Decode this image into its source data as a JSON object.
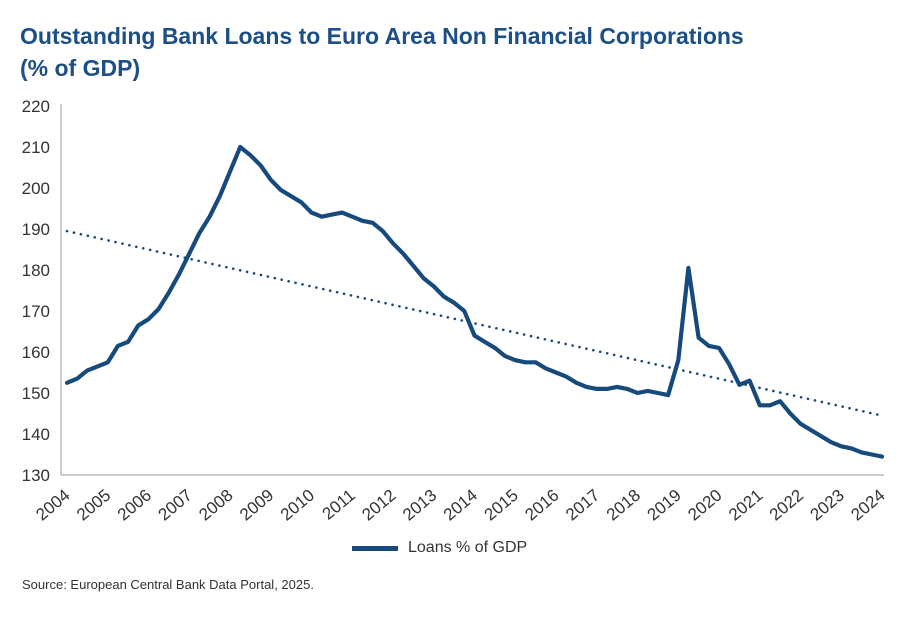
{
  "chart_data": {
    "type": "line",
    "title": "Outstanding Bank Loans to Euro Area Non Financial Corporations",
    "subtitle": "(% of GDP)",
    "source": "Source: European Central Bank Data Portal, 2025.",
    "xlim": [
      2004,
      2024
    ],
    "ylim": [
      130,
      220
    ],
    "x_ticks": [
      "2004",
      "2005",
      "2006",
      "2007",
      "2008",
      "2009",
      "2010",
      "2011",
      "2012",
      "2013",
      "2014",
      "2015",
      "2016",
      "2017",
      "2018",
      "2019",
      "2020",
      "2021",
      "2022",
      "2023",
      "2024"
    ],
    "y_ticks": [
      130,
      140,
      150,
      160,
      170,
      180,
      190,
      200,
      210,
      220
    ],
    "grid": false,
    "legend_position": "bottom-center",
    "colors": {
      "series": "#174a7c",
      "title": "#1b4f86",
      "axis": "#999999"
    },
    "series": [
      {
        "name": "Loans % of GDP",
        "style": "solid",
        "x": [
          2004.0,
          2004.25,
          2004.5,
          2004.75,
          2005.0,
          2005.25,
          2005.5,
          2005.75,
          2006.0,
          2006.25,
          2006.5,
          2006.75,
          2007.0,
          2007.25,
          2007.5,
          2007.75,
          2008.0,
          2008.25,
          2008.5,
          2008.75,
          2009.0,
          2009.25,
          2009.5,
          2009.75,
          2010.0,
          2010.25,
          2010.5,
          2010.75,
          2011.0,
          2011.25,
          2011.5,
          2011.75,
          2012.0,
          2012.25,
          2012.5,
          2012.75,
          2013.0,
          2013.25,
          2013.5,
          2013.75,
          2014.0,
          2014.25,
          2014.5,
          2014.75,
          2015.0,
          2015.25,
          2015.5,
          2015.75,
          2016.0,
          2016.25,
          2016.5,
          2016.75,
          2017.0,
          2017.25,
          2017.5,
          2017.75,
          2018.0,
          2018.25,
          2018.5,
          2018.75,
          2019.0,
          2019.25,
          2019.5,
          2019.75,
          2020.0,
          2020.25,
          2020.5,
          2020.75,
          2021.0,
          2021.25,
          2021.5,
          2021.75,
          2022.0,
          2022.25,
          2022.5,
          2022.75,
          2023.0,
          2023.25,
          2023.5,
          2023.75,
          2024.0
        ],
        "values": [
          152.5,
          153.5,
          155.5,
          156.5,
          157.5,
          161.5,
          162.5,
          166.5,
          168,
          170.5,
          174.5,
          179,
          184,
          189,
          193,
          198,
          204,
          210,
          208,
          205.5,
          202,
          199.5,
          198,
          196.5,
          194,
          193,
          193.5,
          194,
          193,
          192,
          191.5,
          189.5,
          186.5,
          184,
          181,
          178,
          176,
          173.5,
          172,
          170,
          164,
          162.5,
          161,
          159,
          158,
          157.5,
          157.5,
          156,
          155,
          154,
          152.5,
          151.5,
          151,
          151,
          151.5,
          151,
          150,
          150.5,
          150,
          149.5,
          158,
          180.5,
          163.5,
          161.5,
          161,
          157,
          152,
          153,
          147,
          147,
          148,
          145,
          142.5,
          141,
          139.5,
          138,
          137,
          136.5,
          135.5,
          135,
          134.5
        ]
      },
      {
        "name": "",
        "style": "dotted",
        "x": [
          2004,
          2024
        ],
        "values": [
          189.5,
          144.5
        ]
      }
    ]
  }
}
